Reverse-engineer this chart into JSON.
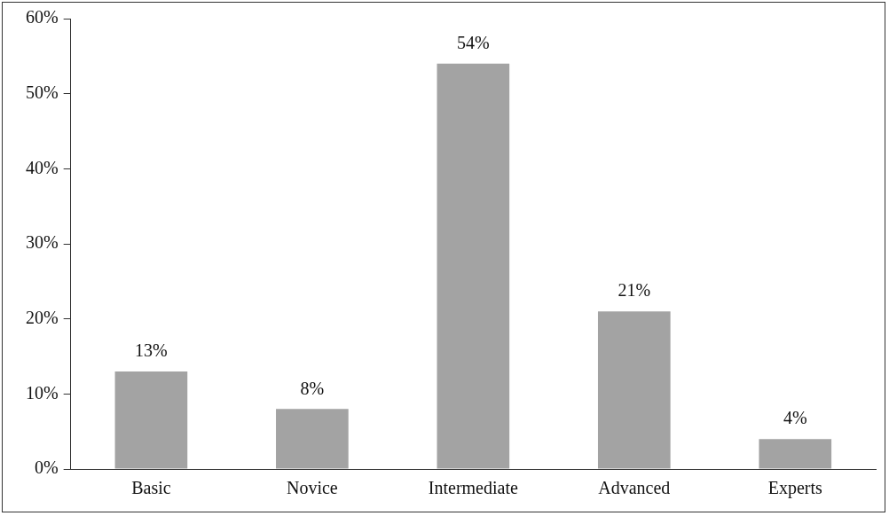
{
  "chart_data": {
    "type": "bar",
    "categories": [
      "Basic",
      "Novice",
      "Intermediate",
      "Advanced",
      "Experts"
    ],
    "values": [
      13,
      8,
      54,
      21,
      4
    ],
    "value_labels": [
      "13%",
      "8%",
      "54%",
      "21%",
      "4%"
    ],
    "color": "#a3a3a3",
    "ylim": [
      0,
      60
    ],
    "yticks": [
      {
        "value": 0,
        "label": "0%"
      },
      {
        "value": 10,
        "label": "10%"
      },
      {
        "value": 20,
        "label": "20%"
      },
      {
        "value": 30,
        "label": "30%"
      },
      {
        "value": 40,
        "label": "40%"
      },
      {
        "value": 50,
        "label": "50%"
      },
      {
        "value": 60,
        "label": "60%"
      }
    ],
    "grid": false,
    "legend": false
  }
}
